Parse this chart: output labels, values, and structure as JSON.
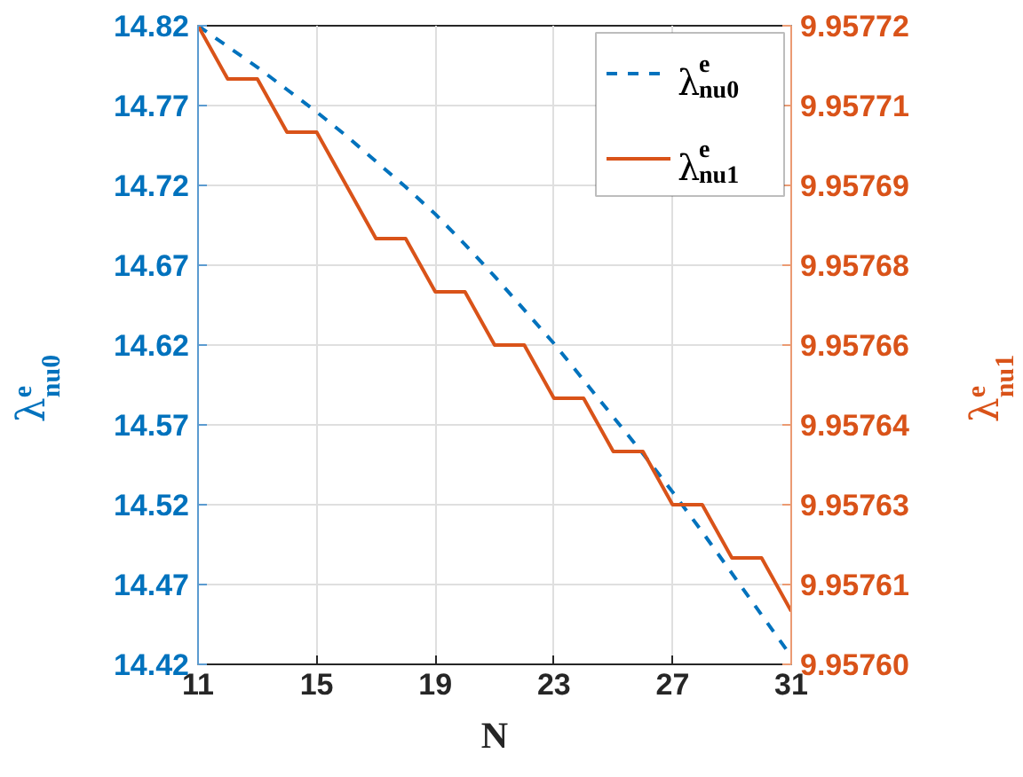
{
  "chart_data": {
    "type": "line",
    "xlabel": "N",
    "ylabel": "λ$^{e}$$_{nu0}$",
    "y2label": "λ$^{e}$$_{nu1}$",
    "x": [
      11,
      12,
      13,
      14,
      15,
      16,
      17,
      18,
      19,
      20,
      21,
      22,
      23,
      24,
      25,
      26,
      27,
      28,
      29,
      30,
      31
    ],
    "series": [
      {
        "name": "λ$^{e}$$_{nu0}$",
        "color": "#0072bd",
        "line_style": "dashed",
        "values": [
          14.82,
          14.807,
          14.794,
          14.78,
          14.766,
          14.751,
          14.735,
          14.719,
          14.702,
          14.683,
          14.663,
          14.642,
          14.621,
          14.598,
          14.575,
          14.552,
          14.528,
          14.503,
          14.477,
          14.451,
          14.425
        ]
      },
      {
        "name": "λ$^{e}$$_{nu1}$",
        "color": "#d95319",
        "line_style": "solid",
        "axis": "y2",
        "values": [
          9.95772,
          9.95771,
          9.95771,
          9.9577,
          9.9577,
          9.95769,
          9.95768,
          9.95768,
          9.95767,
          9.95767,
          9.95766,
          9.95766,
          9.95765,
          9.95765,
          9.95764,
          9.95764,
          9.95763,
          9.95763,
          9.95762,
          9.95762,
          9.95761
        ]
      }
    ],
    "xlim": [
      11,
      31
    ],
    "xticks": [
      11,
      15,
      19,
      23,
      27,
      31
    ],
    "ylim": [
      14.42,
      14.82
    ],
    "yticks": [
      14.42,
      14.47,
      14.52,
      14.57,
      14.62,
      14.67,
      14.72,
      14.77,
      14.82
    ],
    "y2lim": [
      9.9576,
      9.95772
    ],
    "y2ticks": [
      {
        "value": 9.9576,
        "label": "9.95760"
      },
      {
        "value": 9.957615,
        "label": "9.95761"
      },
      {
        "value": 9.95763,
        "label": "9.95763"
      },
      {
        "value": 9.957645,
        "label": "9.95764"
      },
      {
        "value": 9.95766,
        "label": "9.95766"
      },
      {
        "value": 9.957675,
        "label": "9.95768"
      },
      {
        "value": 9.95769,
        "label": "9.95769"
      },
      {
        "value": 9.957705,
        "label": "9.95771"
      },
      {
        "value": 9.95772,
        "label": "9.95772"
      }
    ],
    "grid": true,
    "legend": "top right"
  }
}
